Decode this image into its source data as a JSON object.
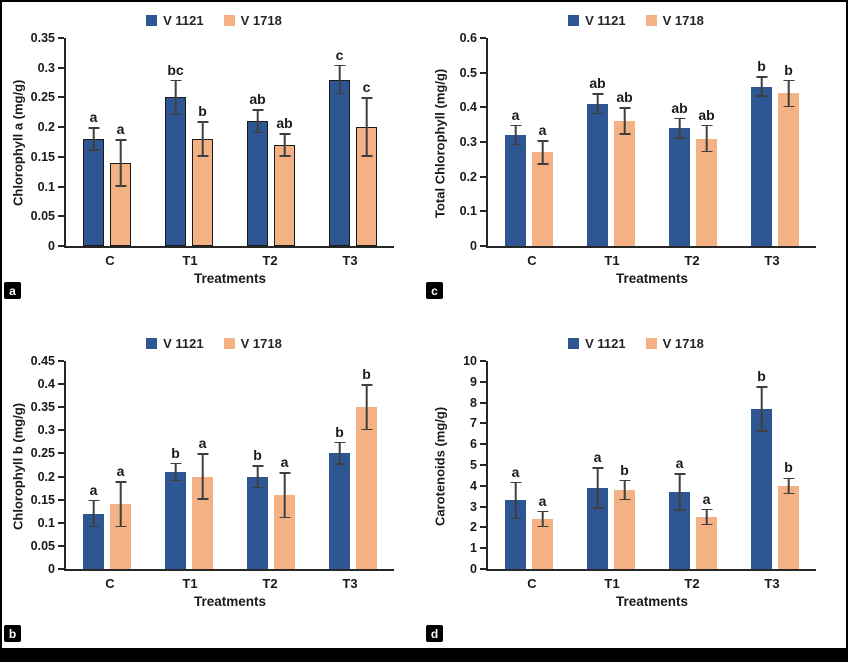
{
  "figure": {
    "series_colors": [
      "#2E5693",
      "#F4B183"
    ],
    "axis_color": "#262626",
    "error_bar_color": "#3F3F3F",
    "legend_labels": [
      "V 1121",
      "V 1718"
    ]
  },
  "chart_data": [
    {
      "type": "bar",
      "panel_label": "a",
      "ylabel": "Chlorophyll a (mg/g)",
      "xlabel": "Treatments",
      "categories": [
        "C",
        "T1",
        "T2",
        "T3"
      ],
      "ylim": [
        0,
        0.35
      ],
      "ytick_labels": [
        "0",
        "0.05",
        "0.1",
        "0.15",
        "0.2",
        "0.25",
        "0.3",
        "0.35"
      ],
      "legend": [
        "V 1121",
        "V 1718"
      ],
      "legend_position": "top",
      "grid": false,
      "bar_outline": true,
      "series": [
        {
          "name": "V 1121",
          "values": [
            0.18,
            0.25,
            0.21,
            0.28
          ],
          "errors": [
            0.02,
            0.03,
            0.02,
            0.025
          ],
          "sig_letters": [
            "a",
            "bc",
            "ab",
            "c"
          ]
        },
        {
          "name": "V 1718",
          "values": [
            0.14,
            0.18,
            0.17,
            0.2
          ],
          "errors": [
            0.04,
            0.03,
            0.02,
            0.05
          ],
          "sig_letters": [
            "a",
            "b",
            "ab",
            "c"
          ]
        }
      ]
    },
    {
      "type": "bar",
      "panel_label": "c",
      "ylabel": "Total Chlorophyll (mg/g)",
      "xlabel": "Treatments",
      "categories": [
        "C",
        "T1",
        "T2",
        "T3"
      ],
      "ylim": [
        0,
        0.6
      ],
      "ytick_labels": [
        "0",
        "0.1",
        "0.2",
        "0.3",
        "0.4",
        "0.5",
        "0.6"
      ],
      "legend": [
        "V 1121",
        "V 1718"
      ],
      "legend_position": "top",
      "grid": false,
      "bar_outline": false,
      "series": [
        {
          "name": "V 1121",
          "values": [
            0.32,
            0.41,
            0.34,
            0.46
          ],
          "errors": [
            0.03,
            0.03,
            0.03,
            0.03
          ],
          "sig_letters": [
            "a",
            "ab",
            "ab",
            "b"
          ]
        },
        {
          "name": "V 1718",
          "values": [
            0.27,
            0.36,
            0.31,
            0.44
          ],
          "errors": [
            0.035,
            0.04,
            0.04,
            0.04
          ],
          "sig_letters": [
            "a",
            "ab",
            "ab",
            "b"
          ]
        }
      ]
    },
    {
      "type": "bar",
      "panel_label": "b",
      "ylabel": "Chlorophyll b (mg/g)",
      "xlabel": "Treatments",
      "categories": [
        "C",
        "T1",
        "T2",
        "T3"
      ],
      "ylim": [
        0,
        0.45
      ],
      "ytick_labels": [
        "0",
        "0.05",
        "0.1",
        "0.15",
        "0.2",
        "0.25",
        "0.3",
        "0.35",
        "0.4",
        "0.45"
      ],
      "legend": [
        "V 1121",
        "V 1718"
      ],
      "legend_position": "top",
      "grid": false,
      "bar_outline": false,
      "series": [
        {
          "name": "V 1121",
          "values": [
            0.12,
            0.21,
            0.2,
            0.25
          ],
          "errors": [
            0.03,
            0.02,
            0.025,
            0.025
          ],
          "sig_letters": [
            "a",
            "b",
            "b",
            "b"
          ]
        },
        {
          "name": "V 1718",
          "values": [
            0.14,
            0.2,
            0.16,
            0.35
          ],
          "errors": [
            0.05,
            0.05,
            0.05,
            0.05
          ],
          "sig_letters": [
            "a",
            "a",
            "a",
            "b"
          ]
        }
      ]
    },
    {
      "type": "bar",
      "panel_label": "d",
      "ylabel": "Carotenoids (mg/g)",
      "xlabel": "Treatments",
      "categories": [
        "C",
        "T1",
        "T2",
        "T3"
      ],
      "ylim": [
        0,
        10
      ],
      "ytick_labels": [
        "0",
        "1",
        "2",
        "3",
        "4",
        "5",
        "6",
        "7",
        "8",
        "9",
        "10"
      ],
      "legend": [
        "V 1121",
        "V 1718"
      ],
      "legend_position": "top",
      "grid": false,
      "bar_outline": false,
      "series": [
        {
          "name": "V 1121",
          "values": [
            3.3,
            3.9,
            3.7,
            7.7
          ],
          "errors": [
            0.9,
            1.0,
            0.9,
            1.1
          ],
          "sig_letters": [
            "a",
            "a",
            "a",
            "b"
          ]
        },
        {
          "name": "V 1718",
          "values": [
            2.4,
            3.8,
            2.5,
            4.0
          ],
          "errors": [
            0.4,
            0.5,
            0.4,
            0.4
          ],
          "sig_letters": [
            "a",
            "b",
            "a",
            "b"
          ]
        }
      ]
    }
  ]
}
